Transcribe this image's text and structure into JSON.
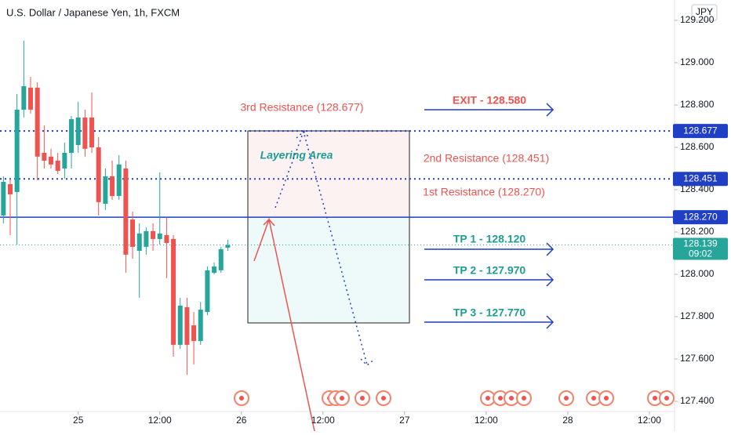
{
  "chart_data": {
    "type": "candlestick",
    "title": "U.S. Dollar / Japanese Yen, 1h, FXCM",
    "currency": "JPY",
    "x": [
      -11,
      -10,
      -9,
      -8,
      -7,
      -6,
      -5,
      -4,
      -3,
      -2,
      -1,
      0,
      1,
      2,
      3,
      4,
      5,
      6,
      7,
      8,
      9,
      10,
      11,
      12,
      13,
      14,
      15,
      16,
      17,
      18,
      19,
      20,
      21,
      22
    ],
    "open": [
      128.278,
      128.426,
      128.389,
      128.778,
      128.882,
      128.882,
      128.574,
      128.556,
      128.537,
      128.5,
      128.574,
      128.611,
      128.741,
      128.741,
      128.6,
      128.333,
      128.463,
      128.37,
      128.5,
      128.259,
      128.111,
      128.13,
      128.204,
      128.167,
      128.185,
      128.167,
      127.667,
      127.845,
      127.759,
      127.685,
      127.822,
      128.007,
      128.019,
      128.126
    ],
    "high": [
      128.463,
      128.452,
      128.852,
      129.104,
      128.933,
      128.907,
      128.704,
      128.593,
      128.574,
      128.622,
      128.748,
      128.815,
      128.778,
      128.859,
      128.648,
      128.5,
      128.537,
      128.563,
      128.537,
      128.296,
      128.241,
      128.222,
      128.241,
      128.482,
      128.267,
      128.185,
      127.889,
      127.889,
      127.822,
      127.87,
      128.037,
      128.056,
      128.13,
      128.163
    ],
    "low": [
      128.241,
      128.185,
      128.141,
      128.741,
      128.759,
      128.444,
      128.5,
      128.5,
      128.474,
      128.452,
      128.5,
      128.574,
      128.556,
      128.574,
      128.278,
      128.304,
      128.352,
      128.352,
      128.008,
      128.074,
      127.889,
      128.093,
      128.111,
      128.141,
      127.982,
      127.611,
      127.648,
      127.526,
      127.574,
      127.667,
      127.807,
      128.0,
      128.007,
      128.111
    ],
    "close": [
      128.437,
      128.378,
      128.778,
      128.889,
      128.778,
      128.556,
      128.537,
      128.519,
      128.489,
      128.574,
      128.733,
      128.741,
      128.593,
      128.6,
      128.341,
      128.463,
      128.37,
      128.519,
      128.093,
      128.13,
      128.193,
      128.204,
      128.167,
      128.193,
      128.148,
      127.667,
      127.852,
      127.667,
      127.685,
      127.833,
      128.019,
      128.037,
      128.119,
      128.139
    ],
    "up_color": "#26a69a",
    "down_color": "#ef5350",
    "xlim": [
      -11.5,
      87.7
    ],
    "xticks": [
      {
        "value": 0,
        "label": "25"
      },
      {
        "value": 12,
        "label": "12:00"
      },
      {
        "value": 24,
        "label": "26"
      },
      {
        "value": 36,
        "label": "12:00"
      },
      {
        "value": 48,
        "label": "27"
      },
      {
        "value": 60,
        "label": "12:00"
      },
      {
        "value": 72,
        "label": "28"
      },
      {
        "value": 84,
        "label": "12:00"
      }
    ],
    "ylim": [
      127.352,
      129.296
    ],
    "yticks": [
      {
        "value": 127.4,
        "label": "127.400"
      },
      {
        "value": 127.6,
        "label": "127.600"
      },
      {
        "value": 127.8,
        "label": "127.800"
      },
      {
        "value": 128.0,
        "label": "128.000"
      },
      {
        "value": 128.2,
        "label": "128.200"
      },
      {
        "value": 128.4,
        "label": "128.400"
      },
      {
        "value": 128.6,
        "label": "128.600"
      },
      {
        "value": 128.8,
        "label": "128.800"
      },
      {
        "value": 129.0,
        "label": "129.000"
      },
      {
        "value": 129.2,
        "label": "129.200"
      }
    ],
    "levels": [
      {
        "value": 128.677,
        "label": "128.677",
        "style": "dotted"
      },
      {
        "value": 128.451,
        "label": "128.451",
        "style": "dotted"
      },
      {
        "value": 128.27,
        "label": "128.270",
        "style": "solid"
      }
    ],
    "level_color": "#1f3fc4",
    "last_price": {
      "value": 128.139,
      "label": "128.139",
      "countdown": "09:02",
      "color": "#26a69a"
    },
    "annotations": [
      "3rd Resistance (128.677)",
      "EXIT - 128.580",
      "2nd Resistance (128.451)",
      "1st Resistance (128.270)",
      "TP 1 - 128.120",
      "TP 2 - 127.970",
      "TP 3 - 127.770",
      "Layering Area"
    ]
  }
}
